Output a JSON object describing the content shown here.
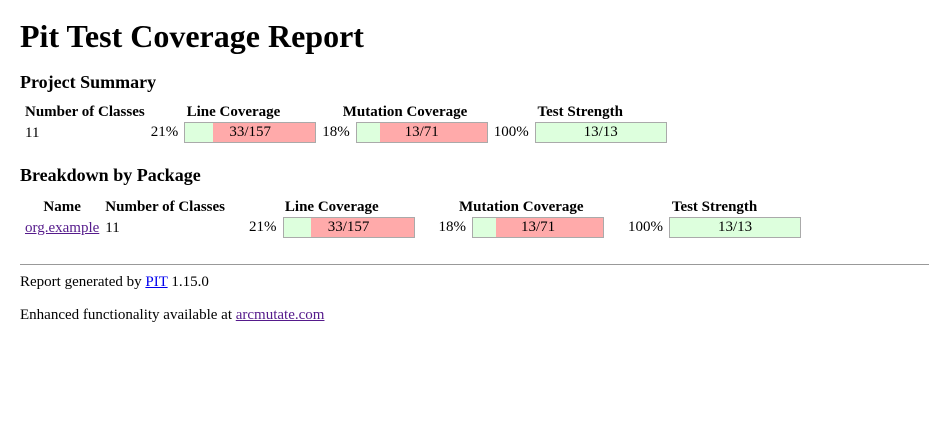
{
  "title": "Pit Test Coverage Report",
  "project_summary": {
    "heading": "Project Summary",
    "headers": [
      "Number of Classes",
      "Line Coverage",
      "Mutation Coverage",
      "Test Strength"
    ],
    "row": {
      "classes": "11",
      "line": {
        "percent": "21%",
        "legend": "33/157"
      },
      "mutation": {
        "percent": "18%",
        "legend": "13/71"
      },
      "strength": {
        "percent": "100%",
        "legend": "13/13"
      }
    }
  },
  "breakdown": {
    "heading": "Breakdown by Package",
    "headers": [
      "Name",
      "Number of Classes",
      "Line Coverage",
      "Mutation Coverage",
      "Test Strength"
    ],
    "rows": [
      {
        "name": "org.example",
        "classes": "11",
        "line": {
          "percent": "21%",
          "legend": "33/157"
        },
        "mutation": {
          "percent": "18%",
          "legend": "13/71"
        },
        "strength": {
          "percent": "100%",
          "legend": "13/13"
        }
      }
    ]
  },
  "footer": {
    "generated_prefix": "Report generated by",
    "pit_link": "PIT",
    "version": "1.15.0",
    "enhanced_prefix": "Enhanced functionality available at",
    "arcmutate_link": "arcmutate.com"
  }
}
